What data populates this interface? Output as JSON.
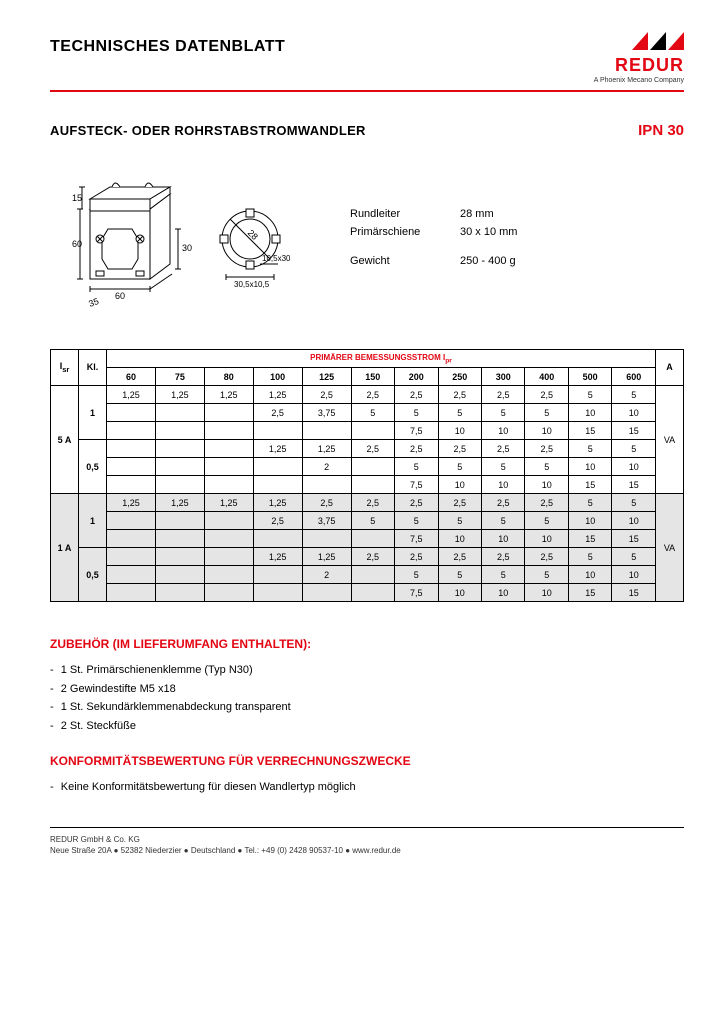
{
  "header": {
    "title": "TECHNISCHES DATENBLATT",
    "logo_text": "REDUR",
    "logo_sub": "A Phoenix Mecano Company",
    "logo_colors": {
      "red": "#e30613",
      "black": "#000000"
    }
  },
  "section": {
    "title": "AUFSTECK- ODER ROHRSTABSTROMWANDLER",
    "product": "IPN 30"
  },
  "diagram": {
    "dims": {
      "height_total": "60",
      "top_offset": "15",
      "width": "60",
      "depth": "35",
      "inner": "30",
      "label1": "10,5x30,5",
      "label2": "30,5x10,5",
      "diag": "28"
    }
  },
  "specs": {
    "rundleiter_label": "Rundleiter",
    "rundleiter_value": "28 mm",
    "primarschiene_label": "Primärschiene",
    "primarschiene_value": "30 x 10 mm",
    "gewicht_label": "Gewicht",
    "gewicht_value": "250 - 400 g"
  },
  "table": {
    "header_primary": "PRIMÄRER BEMESSUNGSSTROM I",
    "header_primary_sub": "pr",
    "col_isr": "I",
    "col_isr_sub": "sr",
    "col_kl": "Kl.",
    "col_a": "A",
    "col_va": "VA",
    "currents": [
      "60",
      "75",
      "80",
      "100",
      "125",
      "150",
      "200",
      "250",
      "300",
      "400",
      "500",
      "600"
    ],
    "groups": [
      {
        "isr": "5 A",
        "shaded": false,
        "blocks": [
          {
            "kl": "1",
            "rows": [
              [
                "1,25",
                "1,25",
                "1,25",
                "1,25",
                "2,5",
                "2,5",
                "2,5",
                "2,5",
                "2,5",
                "2,5",
                "5",
                "5"
              ],
              [
                "",
                "",
                "",
                "2,5",
                "3,75",
                "5",
                "5",
                "5",
                "5",
                "5",
                "10",
                "10"
              ],
              [
                "",
                "",
                "",
                "",
                "",
                "",
                "7,5",
                "10",
                "10",
                "10",
                "15",
                "15"
              ]
            ]
          },
          {
            "kl": "0,5",
            "rows": [
              [
                "",
                "",
                "",
                "1,25",
                "1,25",
                "2,5",
                "2,5",
                "2,5",
                "2,5",
                "2,5",
                "5",
                "5"
              ],
              [
                "",
                "",
                "",
                "",
                "2",
                "",
                "5",
                "5",
                "5",
                "5",
                "10",
                "10"
              ],
              [
                "",
                "",
                "",
                "",
                "",
                "",
                "7,5",
                "10",
                "10",
                "10",
                "15",
                "15"
              ]
            ]
          }
        ]
      },
      {
        "isr": "1 A",
        "shaded": true,
        "blocks": [
          {
            "kl": "1",
            "rows": [
              [
                "1,25",
                "1,25",
                "1,25",
                "1,25",
                "2,5",
                "2,5",
                "2,5",
                "2,5",
                "2,5",
                "2,5",
                "5",
                "5"
              ],
              [
                "",
                "",
                "",
                "2,5",
                "3,75",
                "5",
                "5",
                "5",
                "5",
                "5",
                "10",
                "10"
              ],
              [
                "",
                "",
                "",
                "",
                "",
                "",
                "7,5",
                "10",
                "10",
                "10",
                "15",
                "15"
              ]
            ]
          },
          {
            "kl": "0,5",
            "rows": [
              [
                "",
                "",
                "",
                "1,25",
                "1,25",
                "2,5",
                "2,5",
                "2,5",
                "2,5",
                "2,5",
                "5",
                "5"
              ],
              [
                "",
                "",
                "",
                "",
                "2",
                "",
                "5",
                "5",
                "5",
                "5",
                "10",
                "10"
              ],
              [
                "",
                "",
                "",
                "",
                "",
                "",
                "7,5",
                "10",
                "10",
                "10",
                "15",
                "15"
              ]
            ]
          }
        ]
      }
    ]
  },
  "accessories": {
    "heading": "ZUBEHÖR (IM LIEFERUMFANG ENTHALTEN):",
    "items": [
      "1 St. Primärschienenklemme (Typ N30)",
      "2 Gewindestifte M5 x18",
      "1 St. Sekundärklemmenabdeckung transparent",
      "2 St. Steckfüße"
    ]
  },
  "conformity": {
    "heading": "KONFORMITÄTSBEWERTUNG FÜR VERRECHNUNGSZWECKE",
    "items": [
      "Keine Konformitätsbewertung für diesen Wandlertyp möglich"
    ]
  },
  "footer": {
    "line1": "REDUR GmbH & Co. KG",
    "line2": "Neue Straße 20A ● 52382 Niederzier ● Deutschland ● Tel.: +49 (0) 2428 90537-10 ● www.redur.de"
  }
}
